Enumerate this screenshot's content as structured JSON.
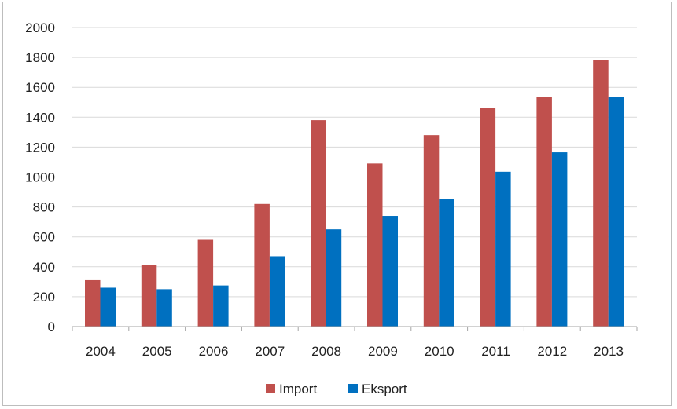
{
  "chart_data": {
    "type": "bar",
    "title": "",
    "xlabel": "",
    "ylabel": "",
    "categories": [
      "2004",
      "2005",
      "2006",
      "2007",
      "2008",
      "2009",
      "2010",
      "2011",
      "2012",
      "2013"
    ],
    "series": [
      {
        "name": "Import",
        "color": "#c0504d",
        "values": [
          310,
          410,
          580,
          820,
          1380,
          1090,
          1280,
          1460,
          1535,
          1780
        ]
      },
      {
        "name": "Eksport",
        "color": "#0070c0",
        "values": [
          260,
          250,
          275,
          470,
          650,
          740,
          855,
          1035,
          1165,
          1535
        ]
      }
    ],
    "ylim": [
      0,
      2000
    ],
    "yticks": [
      0,
      200,
      400,
      600,
      800,
      1000,
      1200,
      1400,
      1600,
      1800,
      2000
    ],
    "grid": true,
    "legend_position": "bottom"
  }
}
